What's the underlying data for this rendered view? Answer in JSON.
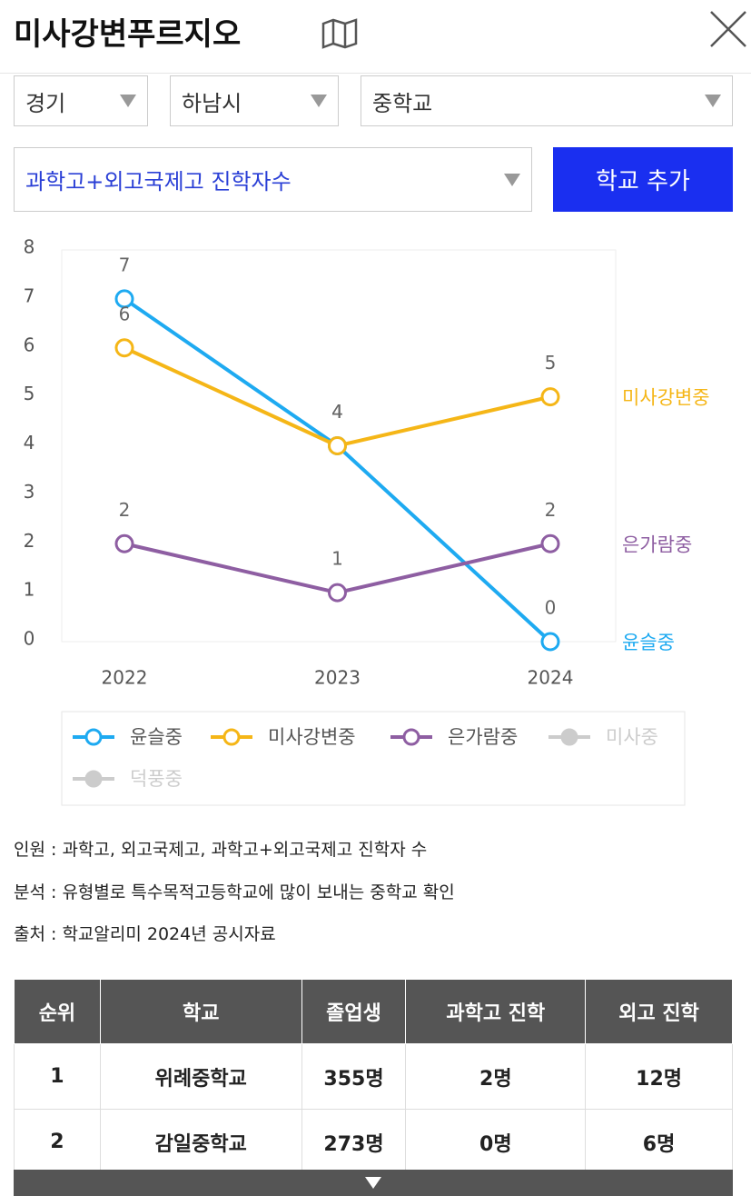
{
  "header": {
    "title": "미사강변푸르지오"
  },
  "filters": {
    "selects": [
      "경기",
      "하남시",
      "중학교"
    ],
    "metric": "과학고+외고국제고 진학자수",
    "button": "학교 추가"
  },
  "chart_data": {
    "type": "line",
    "categories": [
      "2022",
      "2023",
      "2024"
    ],
    "series": [
      {
        "name": "윤슬중",
        "color": "#1eaaf1",
        "values": [
          7,
          4,
          0
        ]
      },
      {
        "name": "미사강변중",
        "color": "#f5b617",
        "values": [
          6,
          4,
          5
        ]
      },
      {
        "name": "은가람중",
        "color": "#8e5ea2",
        "values": [
          2,
          1,
          2
        ]
      },
      {
        "name": "미사중",
        "color": "#cccccc",
        "hidden": true,
        "values": [
          null,
          null,
          null
        ]
      },
      {
        "name": "덕풍중",
        "color": "#cccccc",
        "hidden": true,
        "values": [
          null,
          null,
          null
        ]
      }
    ],
    "ylim": [
      0,
      8
    ],
    "yticks": [
      0,
      1,
      2,
      3,
      4,
      5,
      6,
      7,
      8
    ],
    "grid": false,
    "legend": "bottom"
  },
  "notes": [
    "인원 : 과학고, 외고국제고, 과학고+외고국제고 진학자 수",
    "분석 : 유형별로 특수목적고등학교에 많이 보내는 중학교 확인",
    "출처 : 학교알리미 2024년 공시자료"
  ],
  "table": {
    "headers": [
      "순위",
      "학교",
      "졸업생",
      "과학고 진학",
      "외고 진학"
    ],
    "rows": [
      [
        "1",
        "위례중학교",
        "355명",
        "2명",
        "12명"
      ],
      [
        "2",
        "감일중학교",
        "273명",
        "0명",
        "6명"
      ]
    ]
  }
}
